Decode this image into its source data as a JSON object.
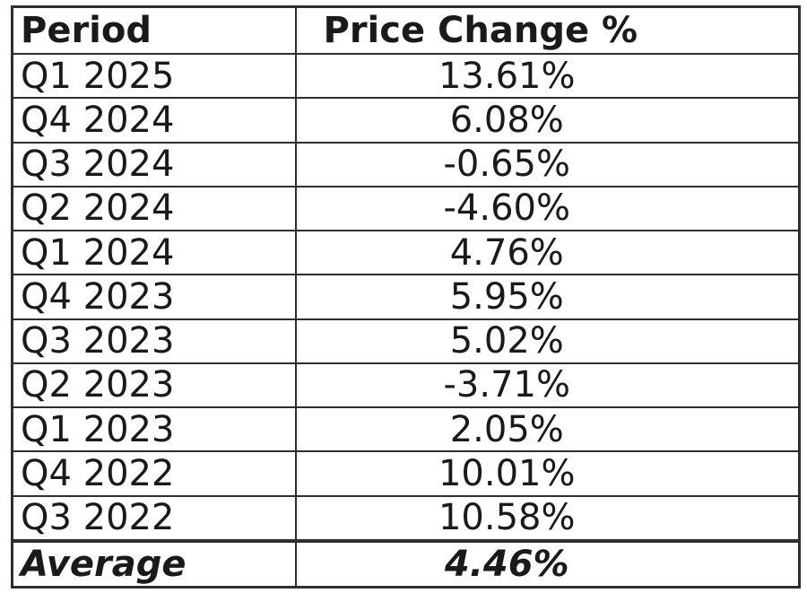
{
  "chart_data": {
    "type": "table",
    "columns": [
      "Period",
      "Price Change %"
    ],
    "rows": [
      {
        "period": "Q1 2025",
        "change": "13.61%"
      },
      {
        "period": "Q4 2024",
        "change": "6.08%"
      },
      {
        "period": "Q3 2024",
        "change": "-0.65%"
      },
      {
        "period": "Q2 2024",
        "change": "-4.60%"
      },
      {
        "period": "Q1 2024",
        "change": "4.76%"
      },
      {
        "period": "Q4 2023",
        "change": "5.95%"
      },
      {
        "period": "Q3 2023",
        "change": "5.02%"
      },
      {
        "period": "Q2 2023",
        "change": "-3.71%"
      },
      {
        "period": "Q1 2023",
        "change": "2.05%"
      },
      {
        "period": "Q4 2022",
        "change": "10.01%"
      },
      {
        "period": "Q3 2022",
        "change": "10.58%"
      }
    ],
    "values": [
      13.61,
      6.08,
      -0.65,
      -4.6,
      4.76,
      5.95,
      5.02,
      -3.71,
      2.05,
      10.01,
      10.58
    ],
    "summary": {
      "label": "Average",
      "value": "4.46%"
    }
  }
}
